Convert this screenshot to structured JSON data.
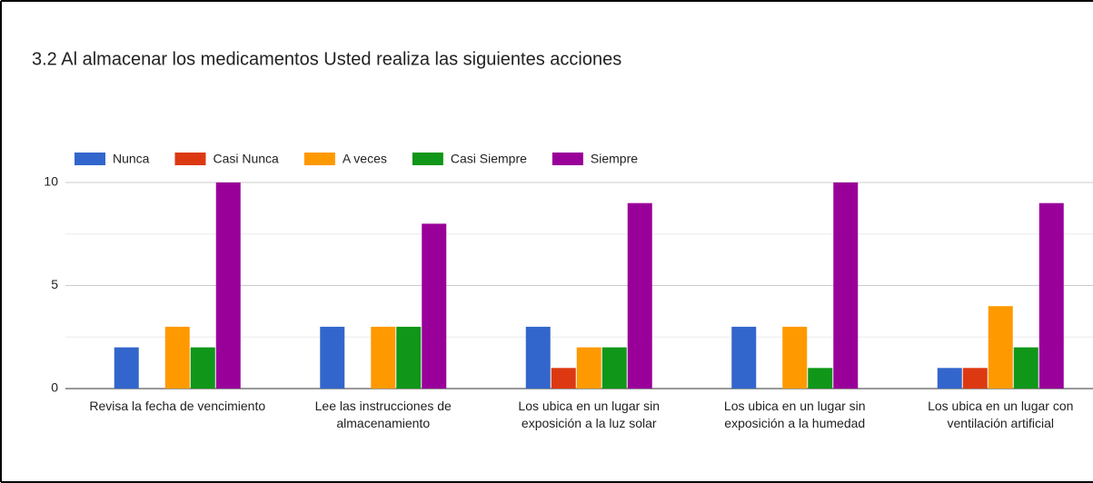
{
  "chart_data": {
    "type": "bar",
    "title": "3.2 Al almacenar los medicamentos Usted realiza las siguientes acciones",
    "categories": [
      "Revisa la fecha de vencimiento",
      "Lee las instrucciones de almacenamiento",
      "Los ubica en un lugar sin exposición a la luz solar",
      "Los ubica en un lugar sin exposición a la humedad",
      "Los ubica en un lugar con ventilación artificial"
    ],
    "series": [
      {
        "name": "Nunca",
        "color": "#3366cc",
        "values": [
          2,
          3,
          3,
          3,
          1
        ]
      },
      {
        "name": "Casi Nunca",
        "color": "#dc3912",
        "values": [
          0,
          0,
          1,
          0,
          1
        ]
      },
      {
        "name": "A veces",
        "color": "#ff9900",
        "values": [
          3,
          3,
          2,
          3,
          4
        ]
      },
      {
        "name": "Casi Siempre",
        "color": "#109618",
        "values": [
          2,
          3,
          2,
          1,
          2
        ]
      },
      {
        "name": "Siempre",
        "color": "#990099",
        "values": [
          10,
          8,
          9,
          10,
          9
        ]
      }
    ],
    "ylim": [
      0,
      10
    ],
    "yticks": [
      0,
      5,
      10
    ],
    "minor_yticks": [
      2.5,
      7.5
    ],
    "grid": true,
    "legend": "top"
  }
}
